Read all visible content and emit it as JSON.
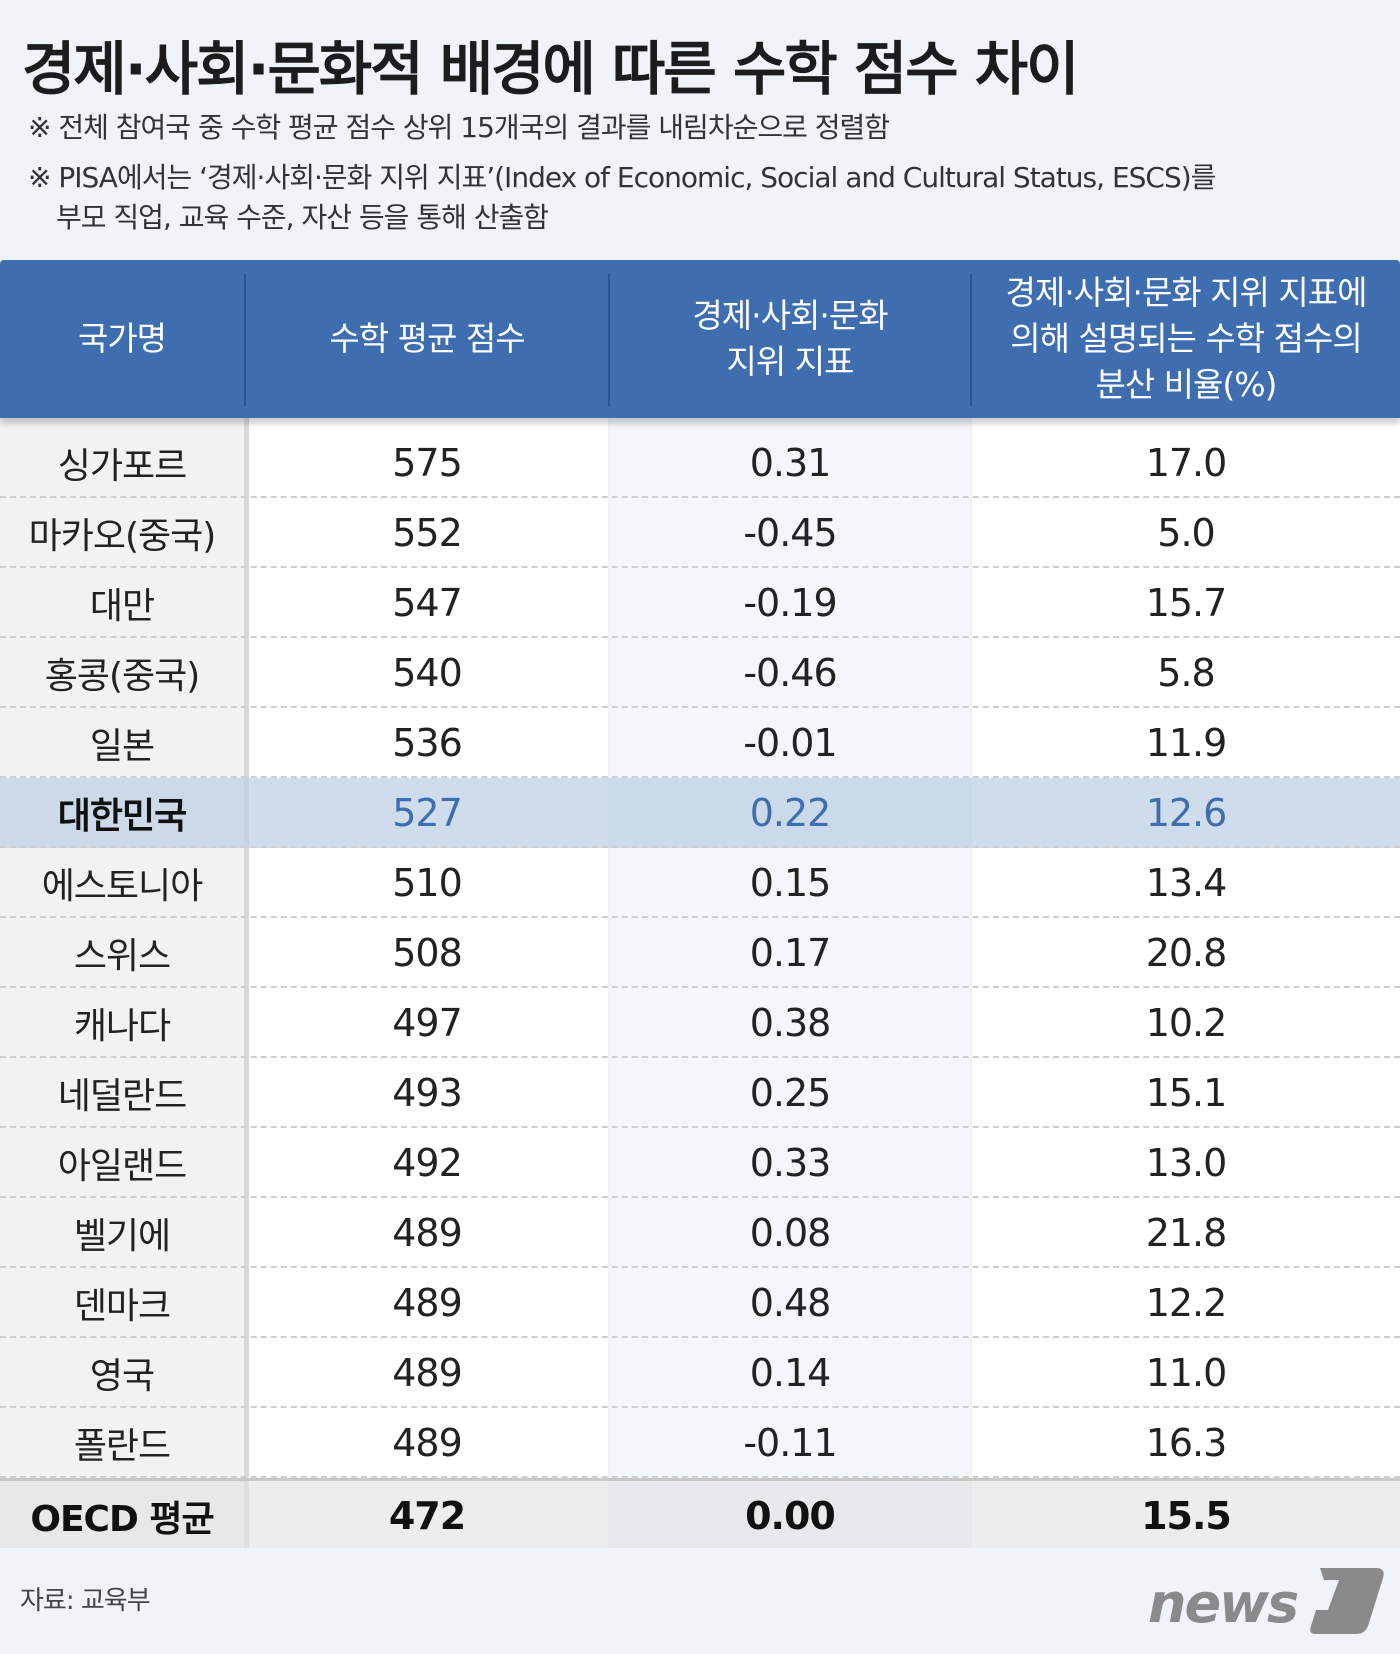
{
  "title": "경제·사회·문화적 배경에 따른 수학 점수 차이",
  "notes": [
    "※ 전체 참여국 중 수학 평균 점수 상위 15개국의 결과를 내림차순으로 정렬함",
    "※ PISA에서는 ‘경제·사회·문화 지위 지표’(Index of Economic, Social and Cultural Status, ESCS)를",
    "부모 직업, 교육 수준, 자산 등을 통해 산출함"
  ],
  "source": "자료: 교육부",
  "logo_text": "news1",
  "colors": {
    "header": "#3e6db0",
    "highlight_row": "#d3dfee",
    "highlight_text": "#3e6db0"
  },
  "chart_data": {
    "type": "table",
    "columns": [
      [
        "국가명"
      ],
      [
        "수학 평균 점수"
      ],
      [
        "경제·사회·문화",
        "지위 지표"
      ],
      [
        "경제·사회·문화 지위 지표에",
        "의해 설명되는 수학 점수의",
        "분산 비율(%)"
      ]
    ],
    "rows": [
      {
        "country": "싱가포르",
        "math": "575",
        "escs": "0.31",
        "variance": "17.0"
      },
      {
        "country": "마카오(중국)",
        "math": "552",
        "escs": "-0.45",
        "variance": "5.0"
      },
      {
        "country": "대만",
        "math": "547",
        "escs": "-0.19",
        "variance": "15.7"
      },
      {
        "country": "홍콩(중국)",
        "math": "540",
        "escs": "-0.46",
        "variance": "5.8"
      },
      {
        "country": "일본",
        "math": "536",
        "escs": "-0.01",
        "variance": "11.9"
      },
      {
        "country": "대한민국",
        "math": "527",
        "escs": "0.22",
        "variance": "12.6",
        "highlight": true
      },
      {
        "country": "에스토니아",
        "math": "510",
        "escs": "0.15",
        "variance": "13.4"
      },
      {
        "country": "스위스",
        "math": "508",
        "escs": "0.17",
        "variance": "20.8"
      },
      {
        "country": "캐나다",
        "math": "497",
        "escs": "0.38",
        "variance": "10.2"
      },
      {
        "country": "네덜란드",
        "math": "493",
        "escs": "0.25",
        "variance": "15.1"
      },
      {
        "country": "아일랜드",
        "math": "492",
        "escs": "0.33",
        "variance": "13.0"
      },
      {
        "country": "벨기에",
        "math": "489",
        "escs": "0.08",
        "variance": "21.8"
      },
      {
        "country": "덴마크",
        "math": "489",
        "escs": "0.48",
        "variance": "12.2"
      },
      {
        "country": "영국",
        "math": "489",
        "escs": "0.14",
        "variance": "11.0"
      },
      {
        "country": "폴란드",
        "math": "489",
        "escs": "-0.11",
        "variance": "16.3"
      }
    ],
    "total": {
      "country": "OECD 평균",
      "math": "472",
      "escs": "0.00",
      "variance": "15.5"
    }
  }
}
